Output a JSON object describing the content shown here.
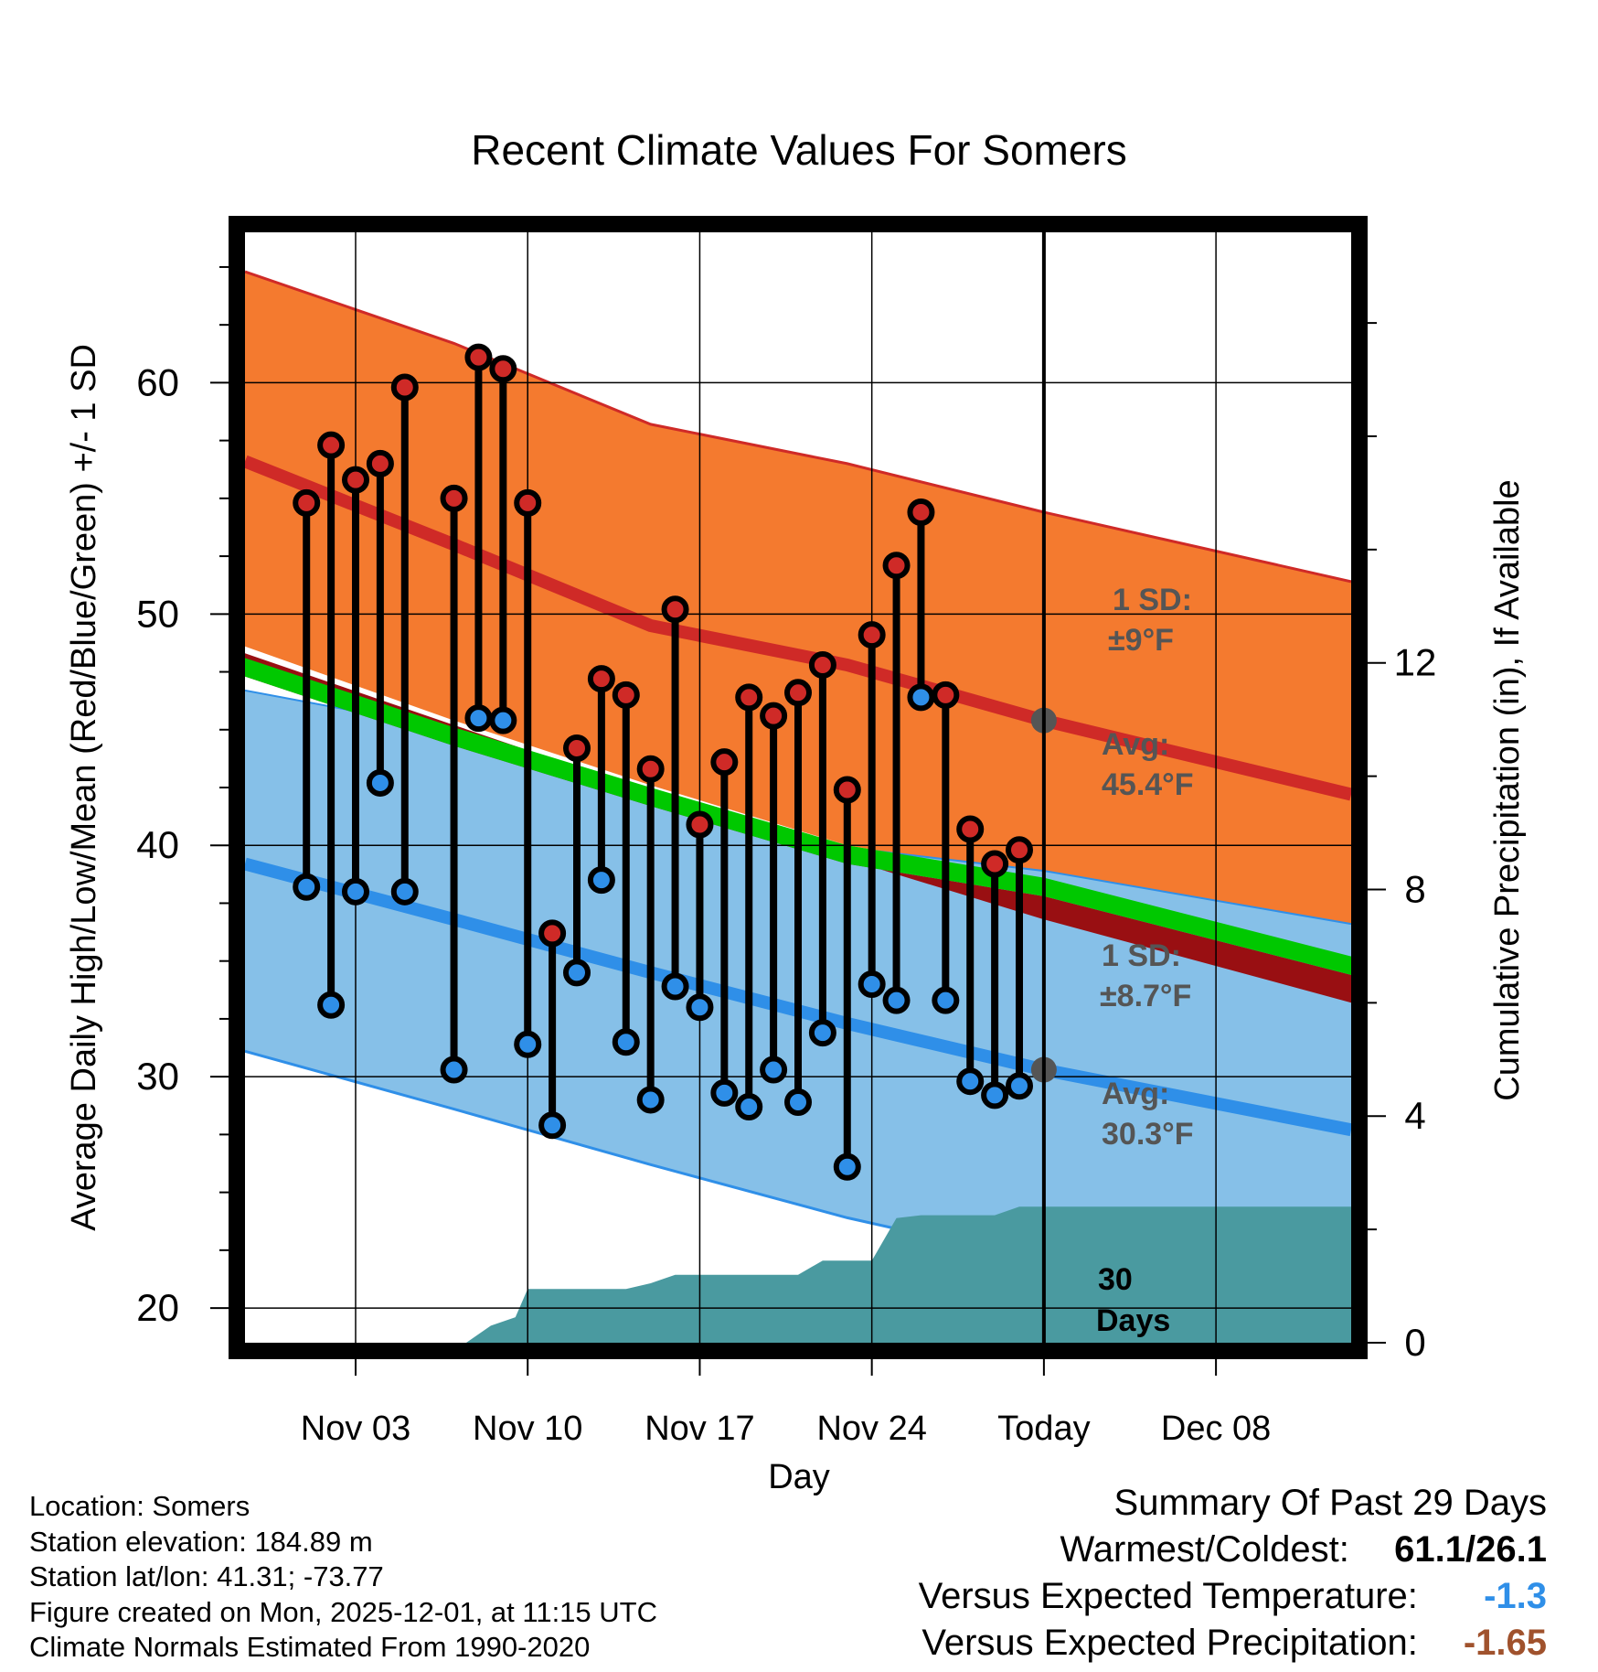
{
  "chart_data": {
    "type": "line",
    "title": "Recent Climate Values For Somers",
    "xlabel": "Day",
    "ylabel_left": "Average Daily High/Low/Mean (Red/Blue/Green) +/- 1 SD",
    "ylabel_right": "Cumulative Precipitation (in), If Available",
    "x_range": [
      -2.5,
      42.5
    ],
    "ylim": [
      18.5,
      66.5
    ],
    "y2lim": [
      0,
      19.6
    ],
    "x_ticks": [
      {
        "x": 2,
        "label": "Nov 03"
      },
      {
        "x": 9,
        "label": "Nov 10"
      },
      {
        "x": 16,
        "label": "Nov 17"
      },
      {
        "x": 23,
        "label": "Nov 24"
      },
      {
        "x": 30,
        "label": "Today"
      },
      {
        "x": 37,
        "label": "Dec 08"
      }
    ],
    "y_ticks": [
      20,
      30,
      40,
      50,
      60
    ],
    "y2_ticks": [
      0,
      4,
      8,
      12
    ],
    "normals": {
      "x": [
        -2.5,
        6,
        14,
        22,
        30,
        42.5
      ],
      "high_avg": [
        56.6,
        53.0,
        49.5,
        47.8,
        45.4,
        42.2
      ],
      "high_upper": [
        64.8,
        61.7,
        58.2,
        56.5,
        54.4,
        51.4
      ],
      "low_avg": [
        39.2,
        36.8,
        34.5,
        32.3,
        30.3,
        27.7
      ],
      "low_upper": [
        46.7,
        45.0,
        42.4,
        39.9,
        38.9,
        36.6
      ],
      "low_lower": [
        31.1,
        28.6,
        26.2,
        23.9,
        22.0,
        19.5
      ],
      "mean_upper": [
        48.1,
        45.1,
        42.5,
        40.0,
        38.6,
        35.2
      ],
      "mean_lower": [
        47.3,
        44.3,
        41.7,
        39.2,
        37.8,
        34.4
      ],
      "warm_band_upper": [
        48.6,
        45.4,
        42.6,
        40.0,
        38.6,
        35.2
      ],
      "warm_band_lower": [
        48.3,
        45.2,
        42.3,
        39.4,
        36.8,
        33.2
      ]
    },
    "daily": {
      "x": [
        0,
        1,
        2,
        3,
        4,
        6,
        7,
        8,
        9,
        10,
        11,
        12,
        13,
        14,
        15,
        16,
        17,
        18,
        19,
        20,
        21,
        22,
        23,
        24,
        25,
        26,
        27,
        28,
        29
      ],
      "high": [
        54.8,
        57.3,
        55.8,
        56.5,
        59.8,
        55.0,
        61.1,
        60.6,
        54.8,
        36.2,
        44.2,
        47.2,
        46.5,
        43.3,
        50.2,
        40.9,
        43.6,
        46.4,
        45.6,
        46.6,
        47.8,
        42.4,
        49.1,
        52.1,
        54.4,
        46.5,
        40.7,
        39.2,
        39.8
      ],
      "low": [
        38.2,
        33.1,
        38.0,
        42.7,
        38.0,
        30.3,
        45.5,
        45.4,
        31.4,
        27.9,
        34.5,
        38.5,
        31.5,
        29.0,
        33.9,
        33.0,
        29.3,
        28.7,
        30.3,
        28.9,
        31.9,
        26.1,
        34.0,
        33.3,
        46.4,
        33.3,
        29.8,
        29.2,
        29.6
      ],
      "high_color": "#cf2a27",
      "low_color": "#2f8fe8"
    },
    "precip": {
      "x": [
        -2.5,
        4.5,
        6.5,
        7.5,
        8.5,
        9,
        10,
        11,
        12,
        13,
        14,
        15,
        16,
        17,
        18,
        19,
        20,
        21,
        22,
        23,
        24,
        25,
        26,
        27,
        28,
        29,
        30,
        42.5
      ],
      "cum": [
        0,
        0,
        0,
        0.3,
        0.45,
        0.95,
        0.95,
        0.95,
        0.95,
        0.95,
        1.05,
        1.2,
        1.2,
        1.2,
        1.2,
        1.2,
        1.2,
        1.45,
        1.45,
        1.45,
        2.2,
        2.25,
        2.25,
        2.25,
        2.25,
        2.4,
        2.4,
        2.4
      ],
      "color": "#4a9aa0"
    },
    "today_x": 30,
    "annotations": {
      "high_sd_title": "1 SD:",
      "high_sd_value": "±9°F",
      "high_avg_title": "Avg:",
      "high_avg_value": "45.4°F",
      "low_sd_title": "1 SD:",
      "low_sd_value": "±8.7°F",
      "low_avg_title": "Avg:",
      "low_avg_value": "30.3°F",
      "window_line1": "30",
      "window_line2": "Days"
    },
    "colors": {
      "high_band": "#f47a2f",
      "high_line": "#cf2a27",
      "low_band": "#86c0e8",
      "low_line": "#2f8fe8",
      "mean_band": "#00c800",
      "warm_band": "#990f12",
      "annotation": "#555555"
    }
  },
  "footer": {
    "location": "Location: Somers",
    "elevation": "Station elevation: 184.89 m",
    "latlon": "Station lat/lon: 41.31; -73.77",
    "created": "Figure created on Mon, 2025-12-01, at 11:15 UTC",
    "normals": "Climate Normals Estimated From 1990-2020"
  },
  "summary": {
    "title": "Summary Of Past 29 Days",
    "warm_cold_label": "Warmest/Coldest:",
    "warm_cold_value": "61.1/26.1",
    "temp_label": "Versus Expected Temperature:",
    "temp_value": "-1.3",
    "temp_color": "#2f8fe8",
    "precip_label": "Versus Expected Precipitation:",
    "precip_value": "-1.65",
    "precip_color": "#a0522d"
  }
}
